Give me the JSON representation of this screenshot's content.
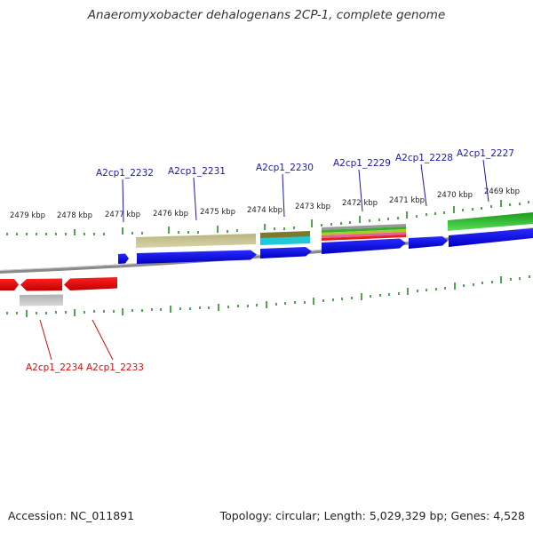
{
  "title": "Anaeromyxobacter dehalogenans 2CP-1, complete genome",
  "footer": {
    "accession": "Accession: NC_011891",
    "stats": "Topology: circular; Length: 5,029,329 bp; Genes: 4,528"
  },
  "kbp_labels": [
    "2479 kbp",
    "2478 kbp",
    "2477 kbp",
    "2476 kbp",
    "2475 kbp",
    "2474 kbp",
    "2473 kbp",
    "2472 kbp",
    "2471 kbp",
    "2470 kbp",
    "2469 kbp"
  ],
  "genes_forward": [
    "A2cp1_2232",
    "A2cp1_2231",
    "A2cp1_2230",
    "A2cp1_2229",
    "A2cp1_2228",
    "A2cp1_2227"
  ],
  "genes_reverse": [
    "A2cp1_2234",
    "A2cp1_2233"
  ],
  "colors": {
    "forward_cds": "#0000dd",
    "reverse_cds": "#dd0000",
    "gene_label_forward": "#1a1aaa",
    "gene_label_reverse": "#cc1111",
    "tick": "#2a8a2a",
    "backbone": "#808080"
  }
}
